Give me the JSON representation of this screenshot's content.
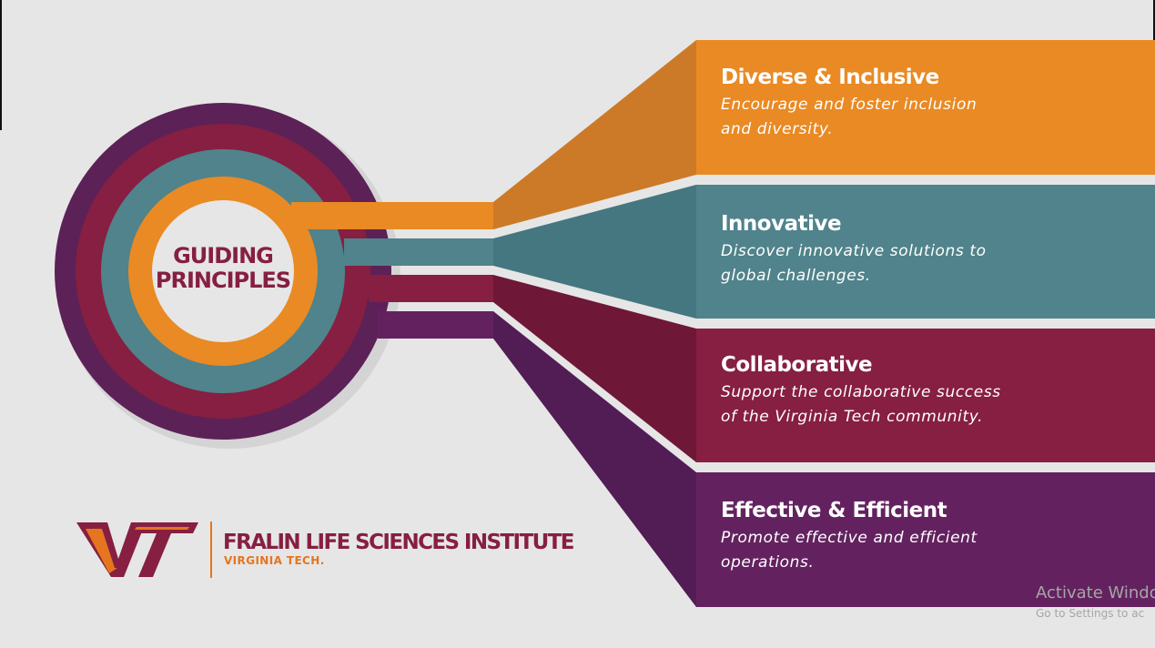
{
  "center": {
    "line1": "GUIDING",
    "line2": "PRINCIPLES"
  },
  "principles": [
    {
      "title": "Diverse & Inclusive",
      "line1": "Encourage and foster inclusion",
      "line2": "and diversity.",
      "color": "#e98a24",
      "shade": "#cc7a28"
    },
    {
      "title": "Innovative",
      "line1": "Discover innovative solutions to",
      "line2": "global challenges.",
      "color": "#50838b",
      "shade": "#457780"
    },
    {
      "title": "Collaborative",
      "line1": "Support the collaborative success",
      "line2": "of the Virginia Tech community.",
      "color": "#861f41",
      "shade": "#6e1736"
    },
    {
      "title": "Effective & Efficient",
      "line1": "Promote effective and efficient",
      "line2": "operations.",
      "color": "#63225f",
      "shade": "#521c55"
    }
  ],
  "rings": {
    "outer": "#5c2157",
    "second": "#861f41",
    "third": "#50838b",
    "inner": "#e98a24",
    "center": "#e6e6e6"
  },
  "logo": {
    "mark": "VT",
    "name": "FRALIN LIFE SCIENCES INSTITUTE",
    "sub": "VIRGINIA TECH.",
    "maroon": "#861f41",
    "orange": "#e5751f"
  },
  "watermark": {
    "title": "Activate Windo",
    "sub": "Go to Settings to ac"
  }
}
